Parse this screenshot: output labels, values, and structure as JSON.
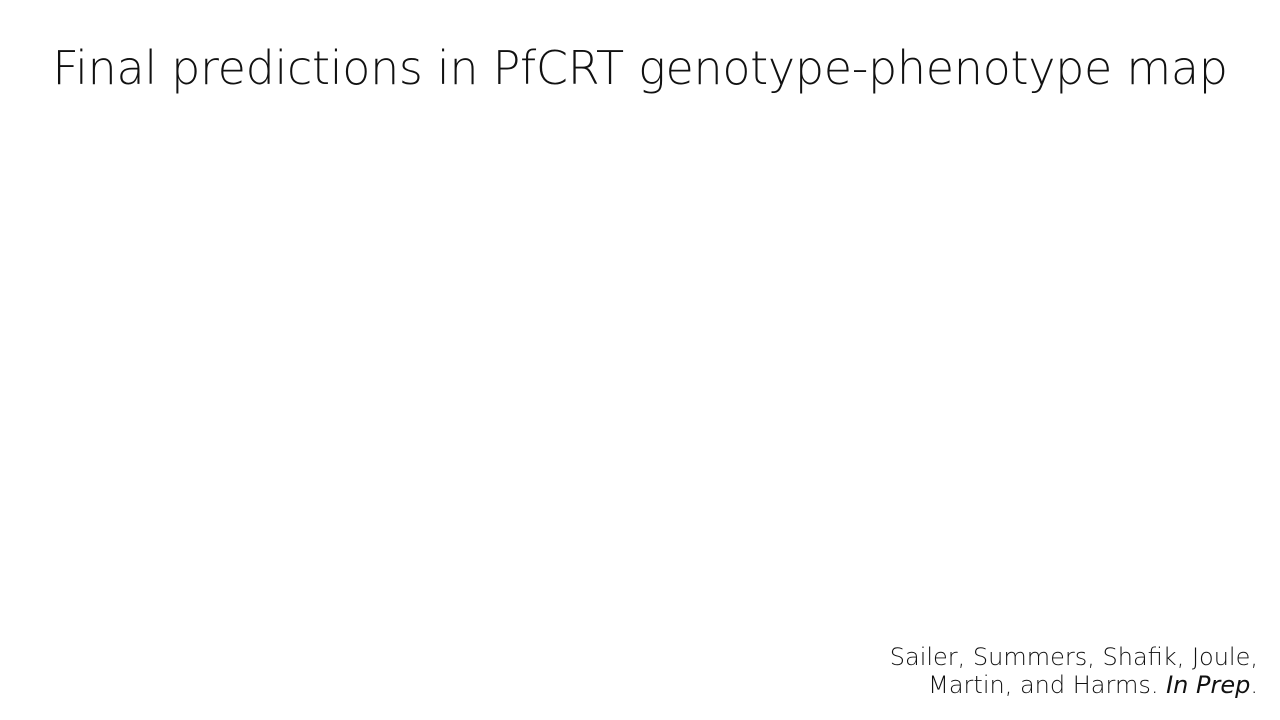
{
  "slide": {
    "title": "Final predictions in PfCRT genotype-phenotype map",
    "citation": {
      "line1": "Sailer, Summers, Shafik, Joule,",
      "line2_prefix": "Martin, and Harms. ",
      "line2_italic": "In Prep",
      "line2_suffix": "."
    }
  }
}
